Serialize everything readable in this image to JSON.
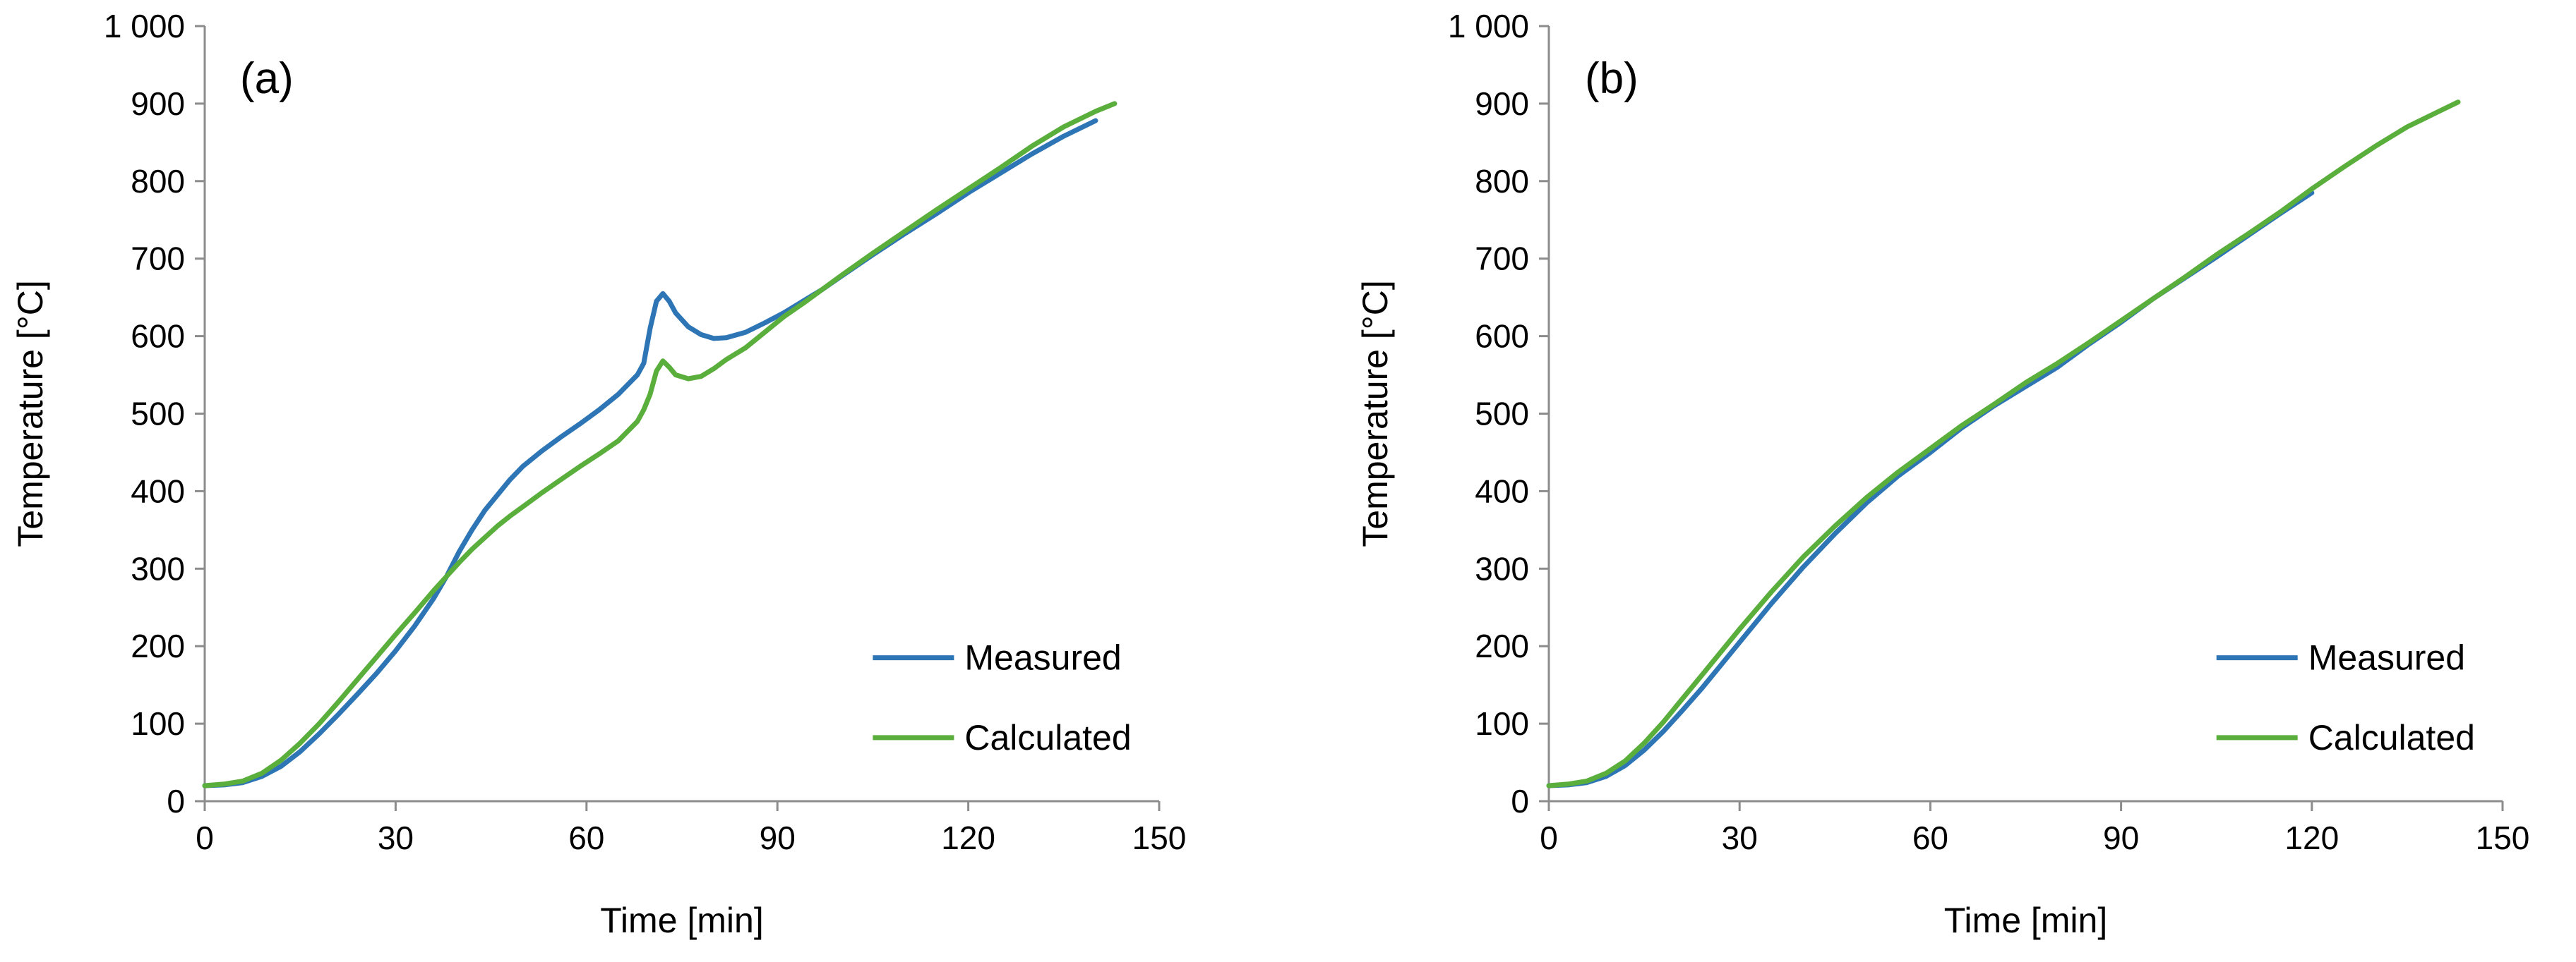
{
  "colors": {
    "measured": "#2E75B6",
    "calculated": "#5AAE3C",
    "axis": "#8C8C8C",
    "text": "#000000"
  },
  "chart_data": [
    {
      "type": "line",
      "panel_label": "(a)",
      "xlabel": "Time [min]",
      "ylabel": "Temperature [°C]",
      "xlim": [
        0,
        150
      ],
      "ylim": [
        0,
        1000
      ],
      "x_ticks": [
        0,
        30,
        60,
        90,
        120,
        150
      ],
      "x_tick_labels": [
        "0",
        "30",
        "60",
        "90",
        "120",
        "150"
      ],
      "y_ticks": [
        0,
        100,
        200,
        300,
        400,
        500,
        600,
        700,
        800,
        900,
        1000
      ],
      "y_tick_labels": [
        "0",
        "100",
        "200",
        "300",
        "400",
        "500",
        "600",
        "700",
        "800",
        "900",
        "1 000"
      ],
      "grid": false,
      "legend_position": "bottom-right",
      "series": [
        {
          "name": "Measured",
          "color_key": "measured",
          "x": [
            0,
            3,
            6,
            9,
            12,
            15,
            18,
            21,
            24,
            27,
            30,
            33,
            36,
            38,
            40,
            42,
            44,
            46,
            48,
            50,
            53,
            56,
            59,
            62,
            65,
            68,
            69,
            70,
            71,
            72,
            73,
            74,
            76,
            78,
            80,
            82,
            85,
            88,
            91,
            94,
            97,
            100,
            105,
            110,
            115,
            120,
            125,
            130,
            135,
            140
          ],
          "y": [
            20,
            21,
            24,
            32,
            45,
            64,
            87,
            112,
            138,
            165,
            194,
            226,
            262,
            290,
            322,
            350,
            375,
            395,
            415,
            432,
            452,
            470,
            487,
            505,
            525,
            550,
            565,
            610,
            645,
            655,
            645,
            630,
            612,
            602,
            597,
            598,
            605,
            617,
            630,
            645,
            660,
            677,
            705,
            732,
            758,
            785,
            810,
            835,
            858,
            878
          ]
        },
        {
          "name": "Calculated",
          "color_key": "calculated",
          "x": [
            0,
            3,
            6,
            9,
            12,
            15,
            18,
            21,
            24,
            27,
            30,
            33,
            36,
            38,
            40,
            42,
            44,
            46,
            48,
            50,
            53,
            56,
            59,
            62,
            65,
            68,
            69,
            70,
            71,
            72,
            73,
            74,
            76,
            78,
            80,
            82,
            85,
            88,
            91,
            94,
            97,
            100,
            105,
            110,
            115,
            120,
            125,
            130,
            135,
            140,
            143
          ],
          "y": [
            20,
            22,
            26,
            36,
            53,
            75,
            100,
            128,
            157,
            186,
            215,
            243,
            272,
            290,
            308,
            325,
            340,
            355,
            368,
            380,
            398,
            415,
            432,
            448,
            465,
            490,
            505,
            525,
            555,
            568,
            560,
            550,
            545,
            548,
            558,
            570,
            585,
            605,
            625,
            642,
            660,
            678,
            707,
            735,
            763,
            790,
            817,
            845,
            870,
            890,
            900
          ]
        }
      ]
    },
    {
      "type": "line",
      "panel_label": "(b)",
      "xlabel": "Time [min]",
      "ylabel": "Temperature [°C]",
      "xlim": [
        0,
        150
      ],
      "ylim": [
        0,
        1000
      ],
      "x_ticks": [
        0,
        30,
        60,
        90,
        120,
        150
      ],
      "x_tick_labels": [
        "0",
        "30",
        "60",
        "90",
        "120",
        "150"
      ],
      "y_ticks": [
        0,
        100,
        200,
        300,
        400,
        500,
        600,
        700,
        800,
        900,
        1000
      ],
      "y_tick_labels": [
        "0",
        "100",
        "200",
        "300",
        "400",
        "500",
        "600",
        "700",
        "800",
        "900",
        "1 000"
      ],
      "grid": false,
      "legend_position": "bottom-right",
      "series": [
        {
          "name": "Measured",
          "color_key": "measured",
          "x": [
            0,
            3,
            6,
            9,
            12,
            15,
            18,
            21,
            24,
            27,
            30,
            35,
            40,
            45,
            50,
            55,
            60,
            65,
            70,
            75,
            80,
            85,
            90,
            95,
            100,
            105,
            110,
            115,
            120
          ],
          "y": [
            20,
            21,
            24,
            32,
            46,
            66,
            90,
            117,
            145,
            175,
            205,
            255,
            302,
            345,
            385,
            420,
            450,
            482,
            510,
            535,
            560,
            590,
            618,
            648,
            675,
            702,
            730,
            758,
            785
          ]
        },
        {
          "name": "Calculated",
          "color_key": "calculated",
          "x": [
            0,
            3,
            6,
            9,
            12,
            15,
            18,
            21,
            24,
            27,
            30,
            35,
            40,
            45,
            50,
            55,
            60,
            65,
            70,
            75,
            80,
            85,
            90,
            95,
            100,
            105,
            110,
            115,
            120,
            125,
            130,
            135,
            140,
            143
          ],
          "y": [
            20,
            22,
            26,
            36,
            52,
            75,
            102,
            132,
            162,
            192,
            222,
            270,
            315,
            355,
            392,
            425,
            455,
            485,
            512,
            540,
            565,
            592,
            620,
            648,
            676,
            705,
            732,
            760,
            790,
            818,
            845,
            870,
            890,
            902
          ]
        }
      ]
    }
  ]
}
